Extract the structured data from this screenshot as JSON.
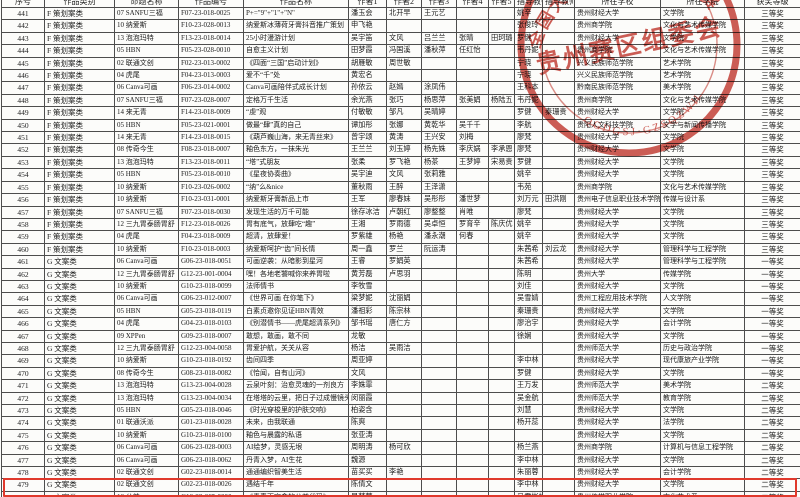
{
  "doc": {
    "columns": [
      "序号",
      "作品类别",
      "命题名称",
      "作品编号",
      "作品名称",
      "作者1",
      "作者2",
      "作者3",
      "作者4",
      "作者5",
      "指导教师1",
      "指导教师2",
      "所在学校",
      "所在学院",
      "获奖等级"
    ],
    "rows": [
      [
        "441",
        "F 策划案类",
        "07 SANFU三福",
        "F07-23-018-0025",
        "P+=\"9\"+\"1\"+\"N\"",
        "潘玉会",
        "北开早",
        "王元艺",
        "",
        "",
        "姚辛",
        "",
        "贵州财经大学",
        "文学院",
        "三等奖"
      ],
      [
        "442",
        "F 策划案类",
        "10 纳爱斯",
        "F10-23-028-0013",
        "纳爱斯冰薄荷牙膏抖音推广策划",
        "申飞艳",
        "",
        "",
        "",
        "",
        "张俊玲",
        "",
        "贵州商学院",
        "文化与艺术传媒学院",
        "三等奖"
      ],
      [
        "443",
        "F 策划案类",
        "13 泡泡玛特",
        "F13-23-018-0014",
        "25小时漫游计划",
        "吴宇笛",
        "文风",
        "吕兰兰",
        "张晴",
        "田珂璐",
        "罗健",
        "",
        "贵州财经大学",
        "文学院",
        "三等奖"
      ],
      [
        "444",
        "F 策划案类",
        "05 HBN",
        "F05-23-028-0010",
        "自愈主义计划",
        "田梦霞",
        "冯国溪",
        "潘秋萍",
        "任红怡",
        "",
        "韦丹妮",
        "",
        "贵州商学院",
        "文化与艺术传媒学院",
        "三等奖"
      ],
      [
        "445",
        "F 策划案类",
        "02 联通文创",
        "F02-23-013-0002",
        "《四面“三国”启动计划》",
        "胡雁敏",
        "周世敏",
        "",
        "",
        "",
        "宁晓",
        "",
        "兴义民族师范学院",
        "艺术学院",
        "三等奖"
      ],
      [
        "446",
        "F 策划案类",
        "04 虎尾",
        "F04-23-013-0003",
        "爱不“千”处",
        "黄宏名",
        "",
        "",
        "",
        "",
        "宁晓",
        "",
        "兴义民族师范学院",
        "艺术学院",
        "三等奖"
      ],
      [
        "447",
        "F 策划案类",
        "06 Canva可画",
        "F06-23-014-0002",
        "Canva可画陪伴式成长计划",
        "孙依云",
        "赵嫣",
        "涂凤伟",
        "",
        "",
        "王科本",
        "",
        "黔南民族师范学院",
        "美术学院",
        "三等奖"
      ],
      [
        "448",
        "F 策划案类",
        "07 SANFU三福",
        "F07-23-028-0007",
        "定格万千生活",
        "余光燕",
        "张巧",
        "杨思萍",
        "张美娟",
        "杨陆五",
        "韦丹妮",
        "",
        "贵州商学院",
        "文化与艺术传媒学院",
        "三等奖"
      ],
      [
        "449",
        "F 策划案类",
        "14 来无青",
        "F14-23-018-0009",
        "“虔”观",
        "付敏敏",
        "邹凡",
        "吴晴婷",
        "",
        "",
        "罗健",
        "秦珊贵",
        "贵州财经大学",
        "文学院",
        "三等奖"
      ],
      [
        "450",
        "F 策划案类",
        "05 HBN",
        "F05-23-021-0001",
        "做最“肆”真的自己",
        "谭加彤",
        "张娜",
        "黄乾华",
        "吴千千",
        "",
        "李航",
        "",
        "贵阳人文科技学院",
        "文学与新闻传播学院",
        "三等奖"
      ],
      [
        "451",
        "F 策划案类",
        "14 来无青",
        "F14-23-018-0015",
        "《葫芦巍山海，来无青丝来》",
        "曾宇颂",
        "黄涛",
        "王兴安",
        "刘梅",
        "",
        "廖梵",
        "",
        "贵州财经大学",
        "文学院",
        "三等奖"
      ],
      [
        "452",
        "F 策划案类",
        "08 传奇今生",
        "F08-23-018-0007",
        "釉色东方，一抹朱光",
        "王兰兰",
        "刘玉婷",
        "杨先姝",
        "李庆娲",
        "李承恩",
        "廖梵",
        "",
        "贵州财经大学",
        "文学院",
        "三等奖"
      ],
      [
        "453",
        "F 策划案类",
        "13 泡泡玛特",
        "F13-23-018-0011",
        "“塔”式朋友",
        "张柔",
        "罗飞艳",
        "杨茶",
        "王梦婷",
        "宋易贵",
        "罗健",
        "",
        "贵州财经大学",
        "文学院",
        "三等奖"
      ],
      [
        "454",
        "F 策划案类",
        "05 HBN",
        "F05-23-018-0010",
        "《星夜协奏曲》",
        "吴宇迪",
        "文风",
        "张莉雅",
        "",
        "",
        "姚辛",
        "",
        "贵州财经大学",
        "文学院",
        "三等奖"
      ],
      [
        "455",
        "F 策划案类",
        "10 纳爱斯",
        "F10-23-026-0002",
        "“纳”么&nice",
        "董秋雨",
        "王醉",
        "王泽潇",
        "",
        "",
        "韦苑",
        "",
        "贵州商学院",
        "文化与艺术传媒学院",
        "三等奖"
      ],
      [
        "456",
        "F 策划案类",
        "10 纳爱斯",
        "F10-23-031-0001",
        "纳爱斯牙膏新品上市",
        "王军",
        "廖春妹",
        "吴彤彤",
        "潘世梦",
        "",
        "刘万元",
        "田洪刚",
        "贵州电子信息职业技术学院",
        "传媒与设计系",
        "三等奖"
      ],
      [
        "457",
        "F 策划案类",
        "07 SANFU三福",
        "F07-23-018-0030",
        "发现生活的万千可能",
        "徐存冰洁",
        "卢朝红",
        "廖整整",
        "肖唯",
        "",
        "廖梵",
        "",
        "贵州财经大学",
        "文学院",
        "三等奖"
      ],
      [
        "458",
        "F 策划案类",
        "12 三九胃泰肠胃舒",
        "F12-23-018-0026",
        "胃有底气，放肆吃“趣”",
        "王湘",
        "罗雨德",
        "吴卓恒",
        "罗育辛",
        "陈庆优",
        "姚辛",
        "",
        "贵州财经大学",
        "文学院",
        "三等奖"
      ],
      [
        "459",
        "F 策划案类",
        "04 虎尾",
        "F04-23-018-0009",
        "超清，放肆爱！",
        "罗紫雄",
        "杨艳",
        "潘永潮",
        "何春",
        "",
        "姚辛",
        "",
        "贵州财经大学",
        "文学院",
        "三等奖"
      ],
      [
        "460",
        "F 策划案类",
        "10 纳爱斯",
        "F10-23-018-0003",
        "纳爱斯呵护“齿”间长情",
        "周一鑫",
        "罗兰",
        "阮运涛",
        "",
        "",
        "朱茜希",
        "刘云龙",
        "贵州财经大学",
        "管理科学与工程学院",
        "三等奖"
      ],
      [
        "461",
        "G 文案类",
        "06 Canva可画",
        "G06-23-018-0051",
        "可画逆袭：从暗影到星河",
        "王睿",
        "罗娟英",
        "",
        "",
        "",
        "朱茜希",
        "",
        "贵州财经大学",
        "管理科学与工程学院",
        "一等奖"
      ],
      [
        "462",
        "G 文案类",
        "12 三九胃泰肠胃舒",
        "G12-23-001-0004",
        "嘿！各地老饕喊你来养胃啦",
        "黄芳磊",
        "卢思羽",
        "",
        "",
        "",
        "陈明",
        "",
        "贵州大学",
        "传媒学院",
        "一等奖"
      ],
      [
        "463",
        "G 文案类",
        "10 纳爱斯",
        "G10-23-018-0099",
        "法师情书",
        "李牧雪",
        "",
        "",
        "",
        "",
        "刘佳",
        "",
        "贵州财经大学",
        "文学院",
        "一等奖"
      ],
      [
        "464",
        "G 文案类",
        "06 Canva可画",
        "G06-23-012-0007",
        "《世界可画 在你笔下》",
        "梁梦妮",
        "沈丽娟",
        "",
        "",
        "",
        "吴雪婧",
        "",
        "贵州工程应用技术学院",
        "人文学院",
        "一等奖"
      ],
      [
        "465",
        "G 文案类",
        "05 HBN",
        "G05-23-018-0119",
        "白素贞邀你见证HBN青效",
        "潘祖彩",
        "陈宗林",
        "",
        "",
        "",
        "秦珊贵",
        "",
        "贵州财经大学",
        "文学院",
        "一等奖"
      ],
      [
        "466",
        "G 文案类",
        "04 虎尾",
        "G04-23-018-0103",
        "《别潜情书——虎尾超清系列》",
        "邹书瑶",
        "唐仁方",
        "",
        "",
        "",
        "廖治宇",
        "",
        "贵州财经大学",
        "会计学院",
        "一等奖"
      ],
      [
        "467",
        "G 文案类",
        "09 XPPen",
        "G09-23-018-0007",
        "敢想，敢画，敢不同",
        "龙敏",
        "",
        "",
        "",
        "",
        "徐娴",
        "",
        "贵州财经大学",
        "文学院",
        "一等奖"
      ],
      [
        "468",
        "G 文案类",
        "12 三九胃泰肠胃舒",
        "G12-23-004-0058",
        "胃爱护航，关关从容",
        "杨洁",
        "吴雨洁",
        "",
        "",
        "",
        "",
        "",
        "贵州师范大学",
        "历史与政治学院",
        "一等奖"
      ],
      [
        "469",
        "G 文案类",
        "10 纳爱斯",
        "G10-23-018-0192",
        "齿间四季",
        "周亚婷",
        "",
        "",
        "",
        "",
        "李中林",
        "",
        "贵州财经大学",
        "现代康旅产业学院",
        "一等奖"
      ],
      [
        "470",
        "G 文案类",
        "08 传奇今生",
        "G08-23-018-0082",
        "《恰闻，自有山河》",
        "文风",
        "",
        "",
        "",
        "",
        "罗健",
        "",
        "贵州财经大学",
        "文学院",
        "一等奖"
      ],
      [
        "471",
        "G 文案类",
        "13 泡泡玛特",
        "G13-23-004-0028",
        "云泉叶刻：治愈灵魂的一剂良方",
        "李姝霏",
        "",
        "",
        "",
        "",
        "王万发",
        "",
        "贵州师范大学",
        "美术学院",
        "二等奖"
      ],
      [
        "472",
        "G 文案类",
        "13 泡泡玛特",
        "G13-23-004-0034",
        "在塔塔的云里，把日子过成慢镜头",
        "闵丽霞",
        "",
        "",
        "",
        "",
        "吴金航",
        "",
        "贵州师范大学",
        "教育学院",
        "二等奖"
      ],
      [
        "473",
        "G 文案类",
        "05 HBN",
        "G05-23-018-0046",
        "《时光穿梭里的护肤交响》",
        "柏姿含",
        "",
        "",
        "",
        "",
        "刘慧",
        "",
        "贵州财经大学",
        "文学院",
        "二等奖"
      ],
      [
        "474",
        "G 文案类",
        "01 联通沃派",
        "G01-23-018-0028",
        "未来，由我联通",
        "陈爽",
        "",
        "",
        "",
        "",
        "杨开蕊",
        "",
        "贵州财经大学",
        "法学院",
        "二等奖"
      ],
      [
        "475",
        "G 文案类",
        "10 纳爱斯",
        "G10-23-018-0100",
        "釉色与晨露的私语",
        "张亚涛",
        "",
        "",
        "",
        "",
        "",
        "",
        "贵州财经大学",
        "文学院",
        "二等奖"
      ],
      [
        "476",
        "G 文案类",
        "06 Canva可画",
        "G06-23-028-0003",
        "AI绘梦，灵感无垠",
        "周明涛",
        "杨可欣",
        "",
        "",
        "",
        "杨兰燕",
        "",
        "贵州商学院",
        "计算机与信息工程学院",
        "二等奖"
      ],
      [
        "477",
        "G 文案类",
        "06 Canva可画",
        "G06-23-018-0062",
        "丹青入梦，AI生花",
        "魏源",
        "",
        "",
        "",
        "",
        "李中林",
        "",
        "贵州财经大学",
        "文学院",
        "二等奖"
      ],
      [
        "478",
        "G 文案类",
        "02 联通文创",
        "G02-23-018-0014",
        "通通编织智美生活",
        "苗买买",
        "李艳",
        "",
        "",
        "",
        "朱丽蓉",
        "",
        "贵州财经大学",
        "会计学院",
        "二等奖"
      ],
      [
        "479",
        "G 文案类",
        "02 联通文创",
        "G02-23-018-0026",
        "遇结千年",
        "陈倩文",
        "",
        "",
        "",
        "",
        "李中林",
        "",
        "贵州财经大学",
        "文学院",
        "二等奖"
      ],
      [
        "480",
        "G 文案类",
        "16 公益",
        "G16-23-065-0006",
        "《青春百宝盒的公益代码》",
        "吴梦莹",
        "",
        "",
        "",
        "",
        "马雯彬彬",
        "",
        "贵州传媒职业学院",
        "文化艺术系",
        "二等奖"
      ]
    ],
    "seal": {
      "top_arc": "全国大学生广告艺术大赛",
      "center": "贵州赛区组委会",
      "bottom_arc": "QGDGSJ·GZSQZWH"
    },
    "highlight": {
      "row_no": "480"
    },
    "colors": {
      "seal": "#c33a31",
      "highlight": "#e0392c",
      "grid": "#4d4d4d"
    }
  }
}
